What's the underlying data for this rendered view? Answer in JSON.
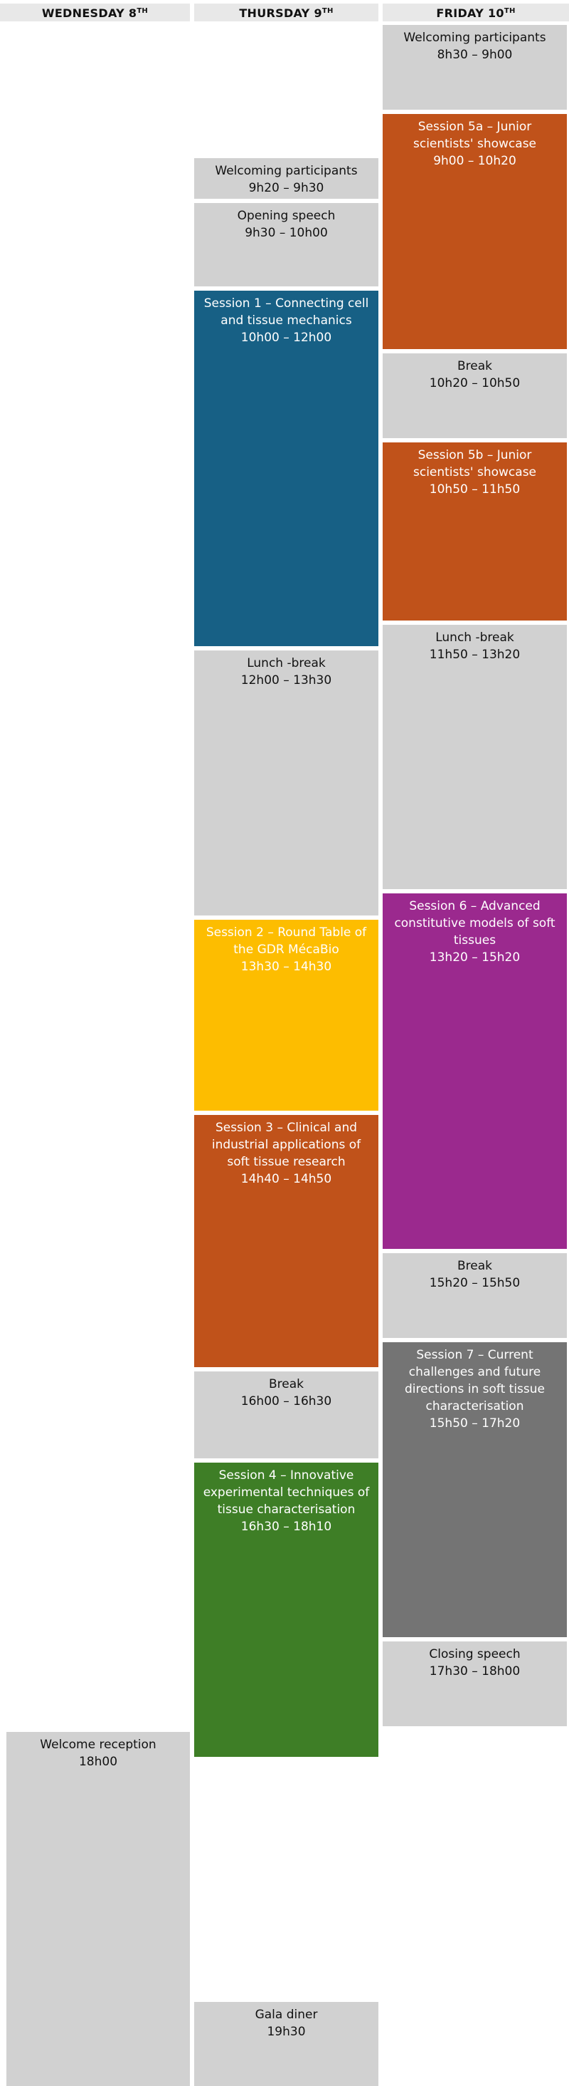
{
  "days": {
    "wed": {
      "name": "WEDNESDAY 8",
      "sup": "TH"
    },
    "thu": {
      "name": "THURSDAY 9",
      "sup": "TH"
    },
    "fri": {
      "name": "FRIDAY 10",
      "sup": "TH"
    }
  },
  "colors": {
    "grey": "#d1d1d1",
    "blue": "#176085",
    "orange": "#c0521a",
    "yellow": "#fdbd00",
    "green": "#3e7e26",
    "purple": "#9b298e",
    "darkgrey": "#747474"
  },
  "wed": {
    "reception": {
      "title": "Welcome reception",
      "time": "18h00"
    }
  },
  "thu": {
    "welcome": {
      "title": "Welcoming participants",
      "time": "9h20 – 9h30"
    },
    "opening": {
      "title": "Opening speech",
      "time": "9h30 – 10h00"
    },
    "s1": {
      "title": "Session 1 – Connecting cell and tissue mechanics",
      "time": "10h00 – 12h00"
    },
    "lunch": {
      "title": "Lunch -break",
      "time": "12h00 – 13h30"
    },
    "s2": {
      "title": "Session 2 – Round Table of the GDR MécaBio",
      "time": "13h30 – 14h30"
    },
    "s3": {
      "title": "Session 3 – Clinical and industrial applications of soft tissue research",
      "time": "14h40 – 14h50"
    },
    "break": {
      "title": "Break",
      "time": "16h00 – 16h30"
    },
    "s4": {
      "title": "Session 4 – Innovative experimental techniques of tissue characterisation",
      "time": "16h30 – 18h10"
    },
    "gala": {
      "title": "Gala diner",
      "time": "19h30"
    }
  },
  "fri": {
    "welcome": {
      "title": "Welcoming participants",
      "time": "8h30 – 9h00"
    },
    "s5a": {
      "title": "Session 5a – Junior scientists' showcase",
      "time": "9h00 – 10h20"
    },
    "break1": {
      "title": "Break",
      "time": "10h20 – 10h50"
    },
    "s5b": {
      "title": "Session 5b – Junior scientists' showcase",
      "time": "10h50 – 11h50"
    },
    "lunch": {
      "title": "Lunch -break",
      "time": "11h50 – 13h20"
    },
    "s6": {
      "title": "Session 6 – Advanced constitutive models of soft tissues",
      "time": "13h20 – 15h20"
    },
    "break2": {
      "title": "Break",
      "time": "15h20 – 15h50"
    },
    "s7": {
      "title": "Session 7 – Current challenges and future directions in soft tissue characterisation",
      "time": "15h50 – 17h20"
    },
    "closing": {
      "title": "Closing speech",
      "time": "17h30 – 18h00"
    }
  }
}
